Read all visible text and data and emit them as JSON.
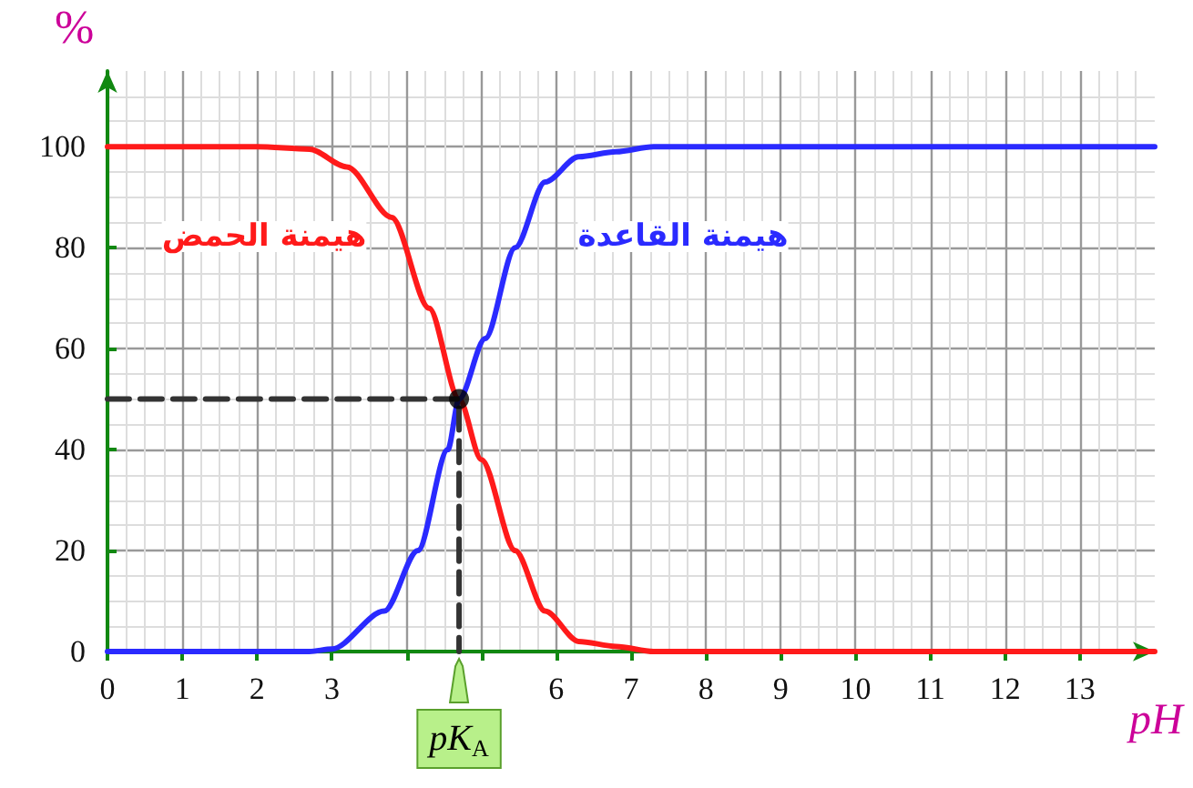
{
  "chart_data": {
    "type": "line",
    "xlabel": "pH",
    "ylabel": "%",
    "xlim": [
      0,
      14
    ],
    "xticks": [
      0,
      1,
      2,
      3,
      {
        "value": 4,
        "label": null
      },
      {
        "value": 5,
        "label": null
      },
      6,
      7,
      8,
      9,
      10,
      11,
      12,
      13
    ],
    "ylim": [
      0,
      115
    ],
    "yticks": [
      0,
      20,
      40,
      60,
      80,
      100
    ],
    "grid": true,
    "legend": false,
    "marker": "none",
    "annotations": [
      {
        "text": "pK$_{A}$",
        "x": 4.7,
        "y": 0
      }
    ],
    "series": [
      {
        "name": "هيمنة الحمض",
        "color": "#ff1a1a",
        "x": [
          0,
          1,
          2,
          2.7,
          3.2,
          3.8,
          4.3,
          4.7,
          5,
          5.45,
          5.85,
          6.3,
          6.8,
          7.3,
          14
        ],
        "values": [
          100,
          100,
          100,
          99.5,
          96,
          86,
          68,
          50,
          38,
          20,
          8,
          2,
          1,
          0,
          0
        ]
      },
      {
        "name": "هيمنة القاعدة",
        "color": "#2a2aff",
        "x": [
          0,
          1,
          2,
          2.7,
          3,
          3.7,
          4.15,
          4.55,
          4.7,
          5.05,
          5.45,
          5.85,
          6.3,
          6.8,
          7.3,
          14
        ],
        "values": [
          0,
          0,
          0,
          0,
          0.5,
          8,
          20,
          40,
          50,
          62,
          80,
          93,
          98,
          99,
          100,
          100
        ]
      },
      {
        "color": "#333333",
        "line_style": "dashed",
        "x": [
          0,
          4.7,
          4.7
        ],
        "values": [
          50,
          50,
          0
        ]
      },
      {
        "type": "scatter",
        "marker": "circle",
        "color": "#000000",
        "x": [
          4.7
        ],
        "values": [
          50
        ]
      }
    ]
  }
}
